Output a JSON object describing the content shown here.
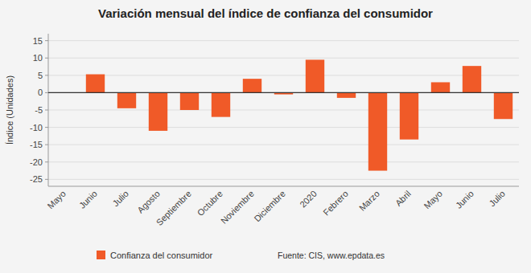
{
  "chart_data": {
    "type": "bar",
    "title": "Variación mensual del índice de confianza del consumidor",
    "ylabel": "Índice (Unidades)",
    "categories": [
      "Mayo",
      "Junio",
      "Julio",
      "Agosto",
      "Septiembre",
      "Octubre",
      "Noviembre",
      "Diciembre",
      "2020",
      "Febrero",
      "Marzo",
      "Abril",
      "Mayo",
      "Junio",
      "Julio"
    ],
    "series": [
      {
        "name": "Confianza del consumidor",
        "color": "#f05a28",
        "values": [
          0.0,
          5.3,
          -4.5,
          -11.0,
          -5.0,
          -7.0,
          4.0,
          -0.5,
          9.5,
          -1.5,
          -22.5,
          -13.5,
          3.0,
          7.7,
          -7.6
        ]
      }
    ],
    "ylim": [
      -27,
      17
    ],
    "yticks": [
      -25,
      -20,
      -15,
      -10,
      -5,
      0,
      5,
      10,
      15
    ],
    "grid": true,
    "legend": "bottom",
    "annotations": [
      "Fuente: CIS, www.epdata.es"
    ]
  }
}
